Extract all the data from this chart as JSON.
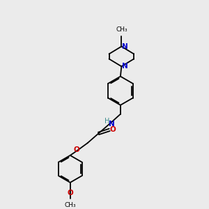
{
  "background_color": "#ebebeb",
  "bond_color": "#000000",
  "N_color": "#0000cc",
  "O_color": "#cc0000",
  "teal_color": "#3a8a8a",
  "figsize": [
    3.0,
    3.0
  ],
  "dpi": 100,
  "xlim": [
    0,
    10
  ],
  "ylim": [
    0,
    10
  ]
}
